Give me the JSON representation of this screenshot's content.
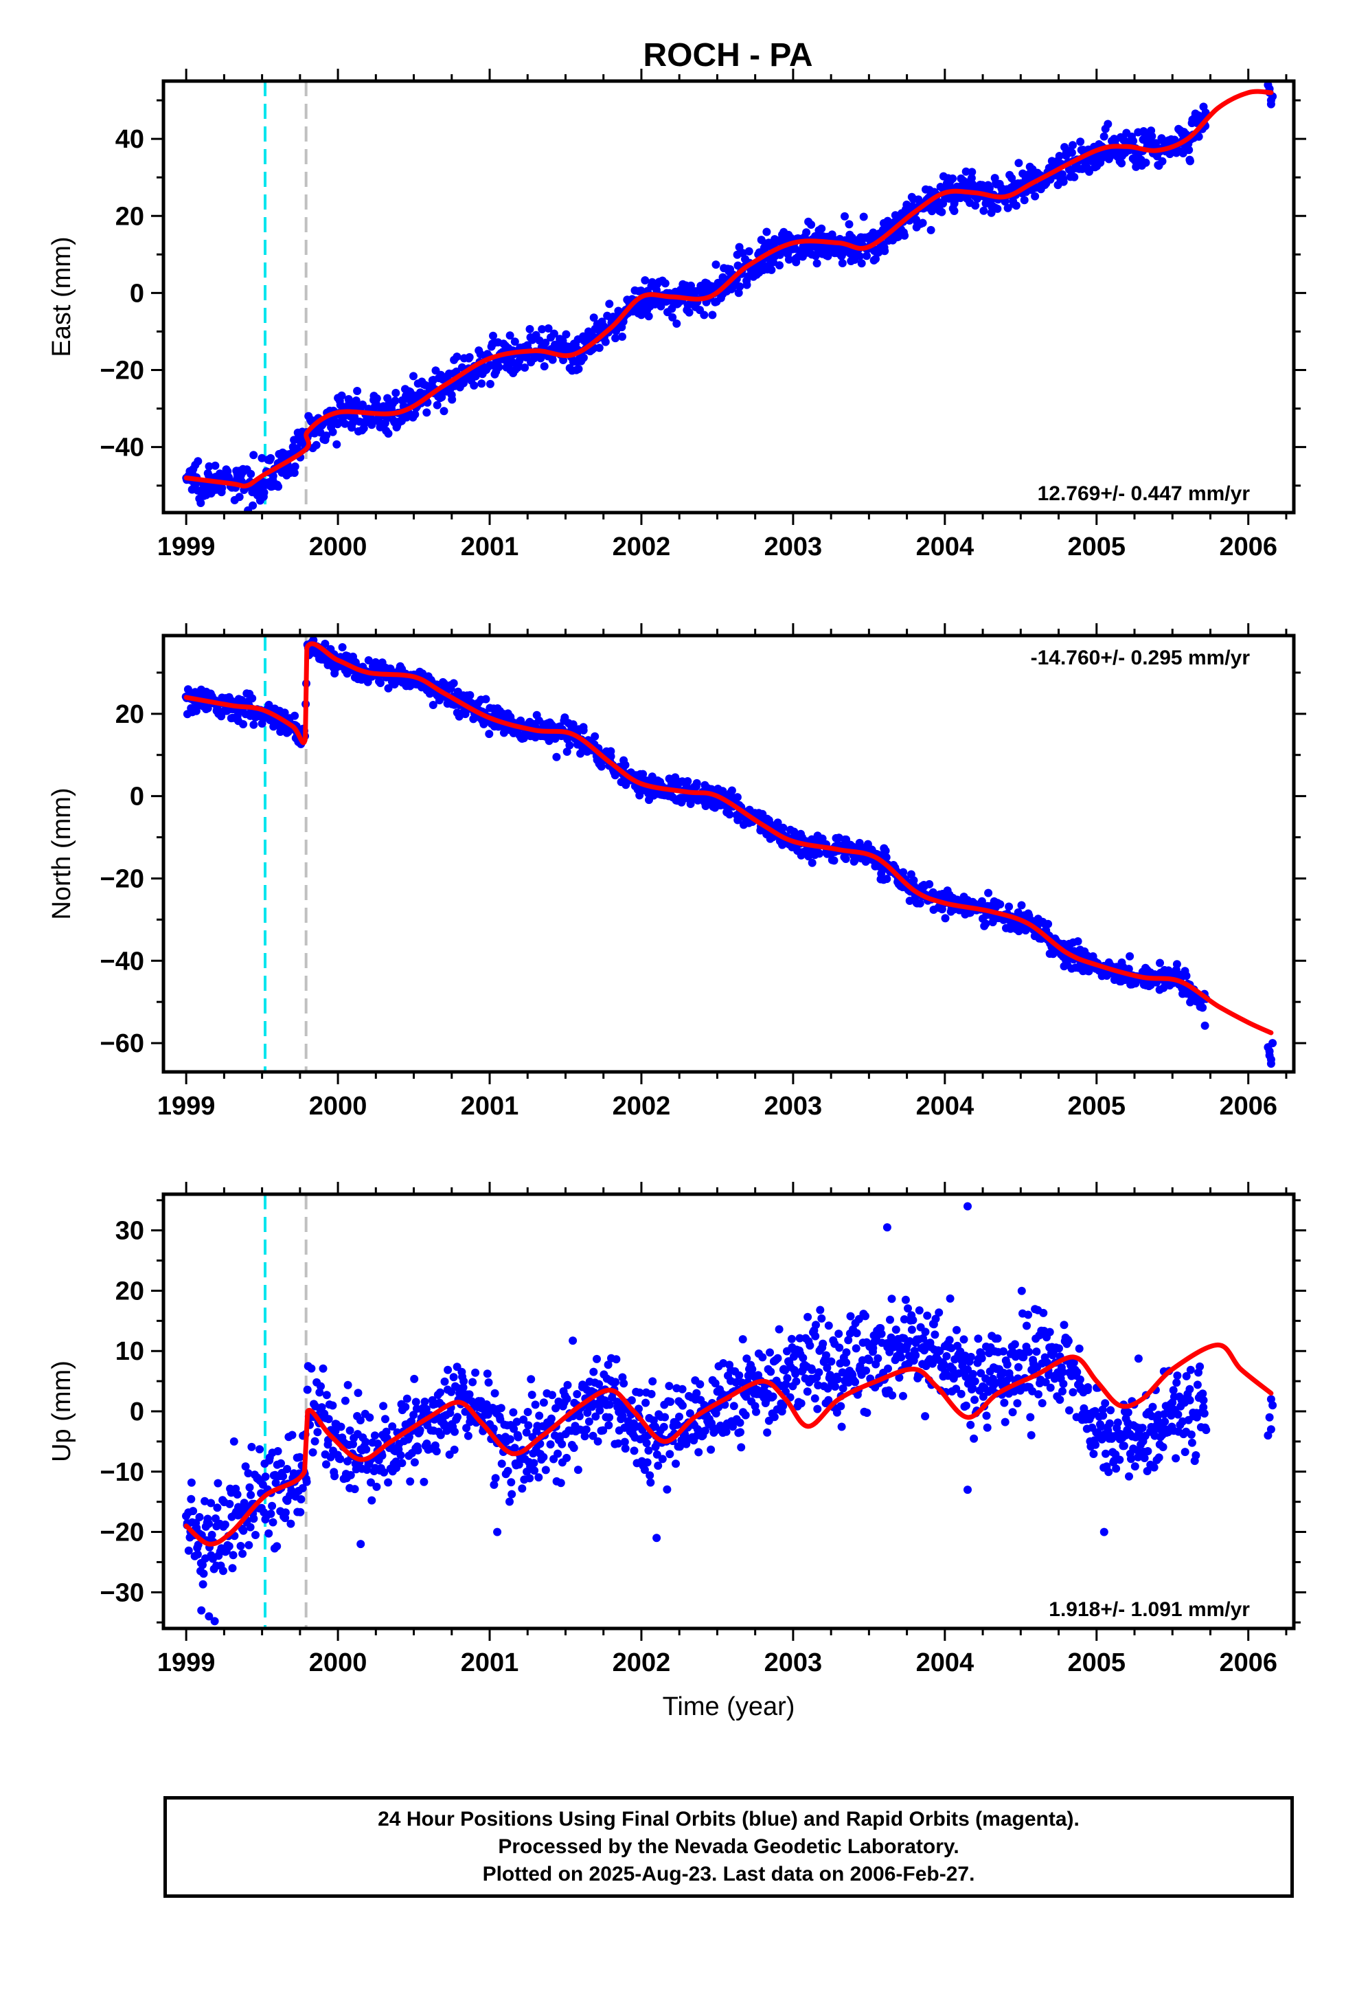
{
  "title": "ROCH - PA",
  "colors": {
    "data_points": "#0000ff",
    "model_curve": "#ff0000",
    "event_line_1": "#00e5ee",
    "event_line_2": "#c0c0c0",
    "frame": "#000000"
  },
  "chart_data": [
    {
      "type": "scatter",
      "title": "",
      "xlabel": "",
      "ylabel": "East (mm)",
      "xlim": [
        1998.85,
        2006.3
      ],
      "ylim": [
        -57,
        55
      ],
      "x_ticks": [
        "1999",
        "2000",
        "2001",
        "2002",
        "2003",
        "2004",
        "2005",
        "2006"
      ],
      "y_ticks": [
        "-40",
        "-20",
        "0",
        "20",
        "40"
      ],
      "rate_label": "12.769+/- 0.447 mm/yr",
      "rate_position": "bottom-right",
      "event_lines": [
        1999.52,
        1999.79
      ],
      "series": [
        {
          "kind": "points",
          "knots": [
            [
              1999.0,
              -48
            ],
            [
              1999.3,
              -49.5
            ],
            [
              1999.45,
              -50
            ],
            [
              1999.6,
              -46
            ],
            [
              1999.75,
              -41
            ],
            [
              1999.8,
              -36
            ],
            [
              2000.0,
              -31
            ],
            [
              2000.4,
              -31
            ],
            [
              2000.7,
              -24
            ],
            [
              2001.0,
              -17
            ],
            [
              2001.3,
              -15
            ],
            [
              2001.55,
              -16
            ],
            [
              2001.8,
              -9
            ],
            [
              2002.0,
              -1
            ],
            [
              2002.2,
              -1
            ],
            [
              2002.45,
              -1
            ],
            [
              2002.7,
              7
            ],
            [
              2003.0,
              13
            ],
            [
              2003.3,
              13
            ],
            [
              2003.5,
              12
            ],
            [
              2003.8,
              21
            ],
            [
              2004.0,
              26
            ],
            [
              2004.2,
              26
            ],
            [
              2004.4,
              25
            ],
            [
              2004.6,
              29
            ],
            [
              2005.0,
              37
            ],
            [
              2005.2,
              38
            ],
            [
              2005.4,
              37
            ],
            [
              2005.6,
              40
            ],
            [
              2005.72,
              46
            ]
          ],
          "range": [
            1999.0,
            2005.72
          ],
          "count": 1450,
          "scatter": 2.4,
          "tail": [
            [
              2006.13,
              54
            ],
            [
              2006.14,
              52
            ],
            [
              2006.15,
              50
            ],
            [
              2006.16,
              51
            ],
            [
              2006.14,
              53
            ],
            [
              2006.15,
              49
            ]
          ]
        },
        {
          "kind": "curve",
          "knots": [
            [
              1999.0,
              -48
            ],
            [
              1999.3,
              -49.5
            ],
            [
              1999.4,
              -50
            ],
            [
              1999.5,
              -47.5
            ],
            [
              1999.79,
              -40.5
            ],
            [
              1999.8,
              -36
            ],
            [
              2000.0,
              -31
            ],
            [
              2000.4,
              -31
            ],
            [
              2000.7,
              -24
            ],
            [
              2001.0,
              -17
            ],
            [
              2001.3,
              -15
            ],
            [
              2001.55,
              -16
            ],
            [
              2001.8,
              -9
            ],
            [
              2002.0,
              -1
            ],
            [
              2002.2,
              -1
            ],
            [
              2002.45,
              -1
            ],
            [
              2002.7,
              7
            ],
            [
              2003.0,
              13
            ],
            [
              2003.3,
              13
            ],
            [
              2003.5,
              12
            ],
            [
              2003.8,
              21
            ],
            [
              2004.0,
              26
            ],
            [
              2004.2,
              26
            ],
            [
              2004.4,
              25
            ],
            [
              2004.6,
              29
            ],
            [
              2005.0,
              37
            ],
            [
              2005.2,
              38
            ],
            [
              2005.4,
              37
            ],
            [
              2005.6,
              40
            ],
            [
              2005.8,
              48
            ],
            [
              2006.0,
              52
            ],
            [
              2006.15,
              52
            ]
          ]
        }
      ]
    },
    {
      "type": "scatter",
      "title": "",
      "xlabel": "",
      "ylabel": "North (mm)",
      "xlim": [
        1998.85,
        2006.3
      ],
      "ylim": [
        -67,
        39
      ],
      "x_ticks": [
        "1999",
        "2000",
        "2001",
        "2002",
        "2003",
        "2004",
        "2005",
        "2006"
      ],
      "y_ticks": [
        "-60",
        "-40",
        "-20",
        "0",
        "20"
      ],
      "rate_label": "-14.760+/- 0.295 mm/yr",
      "rate_position": "top-right",
      "event_lines": [
        1999.52,
        1999.79
      ],
      "series": [
        {
          "kind": "points",
          "knots": [
            [
              1999.0,
              24
            ],
            [
              1999.3,
              22
            ],
            [
              1999.5,
              21
            ],
            [
              1999.7,
              17
            ],
            [
              1999.78,
              14
            ],
            [
              1999.8,
              36
            ],
            [
              2000.0,
              33
            ],
            [
              2000.2,
              30
            ],
            [
              2000.5,
              29
            ],
            [
              2000.7,
              25
            ],
            [
              2001.0,
              19
            ],
            [
              2001.3,
              16
            ],
            [
              2001.55,
              15
            ],
            [
              2001.8,
              8
            ],
            [
              2002.0,
              3
            ],
            [
              2002.3,
              1
            ],
            [
              2002.5,
              0
            ],
            [
              2002.8,
              -7
            ],
            [
              2003.0,
              -11
            ],
            [
              2003.3,
              -13
            ],
            [
              2003.55,
              -15
            ],
            [
              2003.8,
              -23
            ],
            [
              2004.0,
              -26
            ],
            [
              2004.3,
              -28
            ],
            [
              2004.55,
              -31
            ],
            [
              2004.8,
              -38
            ],
            [
              2005.0,
              -41
            ],
            [
              2005.3,
              -44
            ],
            [
              2005.55,
              -45
            ],
            [
              2005.72,
              -51
            ]
          ],
          "range": [
            1999.0,
            2005.72
          ],
          "count": 1450,
          "scatter": 1.5,
          "tail": [
            [
              2006.13,
              -61
            ],
            [
              2006.14,
              -63
            ],
            [
              2006.15,
              -64
            ],
            [
              2006.14,
              -62
            ],
            [
              2006.16,
              -60
            ],
            [
              2006.15,
              -65
            ]
          ]
        },
        {
          "kind": "curve",
          "knots": [
            [
              1999.0,
              24
            ],
            [
              1999.3,
              22
            ],
            [
              1999.5,
              21
            ],
            [
              1999.7,
              17
            ],
            [
              1999.785,
              14
            ],
            [
              1999.795,
              36
            ],
            [
              2000.0,
              33
            ],
            [
              2000.2,
              30
            ],
            [
              2000.5,
              29
            ],
            [
              2000.7,
              25
            ],
            [
              2001.0,
              19
            ],
            [
              2001.3,
              16
            ],
            [
              2001.55,
              15
            ],
            [
              2001.8,
              8
            ],
            [
              2002.0,
              3
            ],
            [
              2002.3,
              1
            ],
            [
              2002.5,
              0
            ],
            [
              2002.8,
              -7
            ],
            [
              2003.0,
              -11
            ],
            [
              2003.3,
              -13
            ],
            [
              2003.55,
              -15
            ],
            [
              2003.8,
              -23
            ],
            [
              2004.0,
              -26
            ],
            [
              2004.3,
              -28
            ],
            [
              2004.55,
              -31
            ],
            [
              2004.8,
              -38
            ],
            [
              2005.0,
              -41
            ],
            [
              2005.3,
              -44
            ],
            [
              2005.55,
              -45
            ],
            [
              2005.8,
              -51
            ],
            [
              2006.0,
              -55
            ],
            [
              2006.15,
              -57.5
            ]
          ]
        }
      ]
    },
    {
      "type": "scatter",
      "title": "",
      "xlabel": "Time (year)",
      "ylabel": "Up (mm)",
      "xlim": [
        1998.85,
        2006.3
      ],
      "ylim": [
        -36,
        36
      ],
      "x_ticks": [
        "1999",
        "2000",
        "2001",
        "2002",
        "2003",
        "2004",
        "2005",
        "2006"
      ],
      "y_ticks": [
        "-30",
        "-20",
        "-10",
        "0",
        "10",
        "20",
        "30"
      ],
      "rate_label": "1.918+/- 1.091 mm/yr",
      "rate_position": "bottom-right",
      "event_lines": [
        1999.52,
        1999.79
      ],
      "series": [
        {
          "kind": "points",
          "knots": [
            [
              1999.0,
              -19
            ],
            [
              1999.1,
              -22
            ],
            [
              1999.2,
              -21
            ],
            [
              1999.4,
              -16
            ],
            [
              1999.52,
              -13
            ],
            [
              1999.78,
              -10
            ],
            [
              1999.8,
              0
            ],
            [
              2000.0,
              -6
            ],
            [
              2000.1,
              -8
            ],
            [
              2000.2,
              -8
            ],
            [
              2000.5,
              -3
            ],
            [
              2000.8,
              1
            ],
            [
              2000.9,
              0
            ],
            [
              2001.1,
              -6
            ],
            [
              2001.2,
              -6
            ],
            [
              2001.5,
              -1
            ],
            [
              2001.8,
              3
            ],
            [
              2002.0,
              -3
            ],
            [
              2002.15,
              -5
            ],
            [
              2002.5,
              1
            ],
            [
              2002.8,
              5
            ],
            [
              2003.0,
              6
            ],
            [
              2003.2,
              7
            ],
            [
              2003.5,
              8
            ],
            [
              2003.8,
              12
            ],
            [
              2004.0,
              9
            ],
            [
              2004.2,
              5
            ],
            [
              2004.5,
              7
            ],
            [
              2004.8,
              8
            ],
            [
              2005.0,
              -3
            ],
            [
              2005.1,
              -5
            ],
            [
              2005.3,
              -4
            ],
            [
              2005.5,
              -1
            ],
            [
              2005.72,
              1
            ]
          ],
          "range": [
            1999.0,
            2005.72
          ],
          "count": 1500,
          "scatter": 3.8,
          "outliers": [
            [
              2003.62,
              30.5
            ],
            [
              2004.15,
              34
            ],
            [
              2001.05,
              -20
            ],
            [
              2002.1,
              -21
            ],
            [
              2004.15,
              -13
            ],
            [
              2005.05,
              -20
            ],
            [
              2000.15,
              -22
            ],
            [
              1999.15,
              -34
            ],
            [
              1999.1,
              -33
            ]
          ],
          "tail": [
            [
              2006.14,
              -1
            ],
            [
              2006.15,
              2
            ],
            [
              2006.13,
              -4
            ],
            [
              2006.16,
              1
            ],
            [
              2006.15,
              -3
            ]
          ]
        },
        {
          "kind": "curve",
          "knots": [
            [
              1999.0,
              -19
            ],
            [
              1999.15,
              -22
            ],
            [
              1999.3,
              -20
            ],
            [
              1999.52,
              -14
            ],
            [
              1999.78,
              -10
            ],
            [
              1999.8,
              0
            ],
            [
              1999.95,
              -4
            ],
            [
              2000.15,
              -8
            ],
            [
              2000.35,
              -5
            ],
            [
              2000.6,
              -1
            ],
            [
              2000.8,
              1.5
            ],
            [
              2000.95,
              -2
            ],
            [
              2001.15,
              -7
            ],
            [
              2001.35,
              -4
            ],
            [
              2001.6,
              1
            ],
            [
              2001.8,
              3.5
            ],
            [
              2001.95,
              0
            ],
            [
              2002.15,
              -5
            ],
            [
              2002.35,
              -1
            ],
            [
              2002.55,
              2
            ],
            [
              2002.8,
              5
            ],
            [
              2002.95,
              2
            ],
            [
              2003.1,
              -2.5
            ],
            [
              2003.3,
              2
            ],
            [
              2003.55,
              5
            ],
            [
              2003.8,
              7
            ],
            [
              2003.95,
              4
            ],
            [
              2004.15,
              -1
            ],
            [
              2004.35,
              3
            ],
            [
              2004.6,
              6
            ],
            [
              2004.85,
              9
            ],
            [
              2005.0,
              5
            ],
            [
              2005.15,
              1
            ],
            [
              2005.3,
              2
            ],
            [
              2005.5,
              7
            ],
            [
              2005.8,
              11
            ],
            [
              2005.95,
              7
            ],
            [
              2006.15,
              3
            ]
          ]
        }
      ]
    }
  ],
  "footer": {
    "line1": "24 Hour Positions Using Final Orbits (blue) and Rapid Orbits (magenta).",
    "line2": "Processed by the Nevada Geodetic Laboratory.",
    "line3": "Plotted on 2025-Aug-23. Last data on 2006-Feb-27."
  }
}
